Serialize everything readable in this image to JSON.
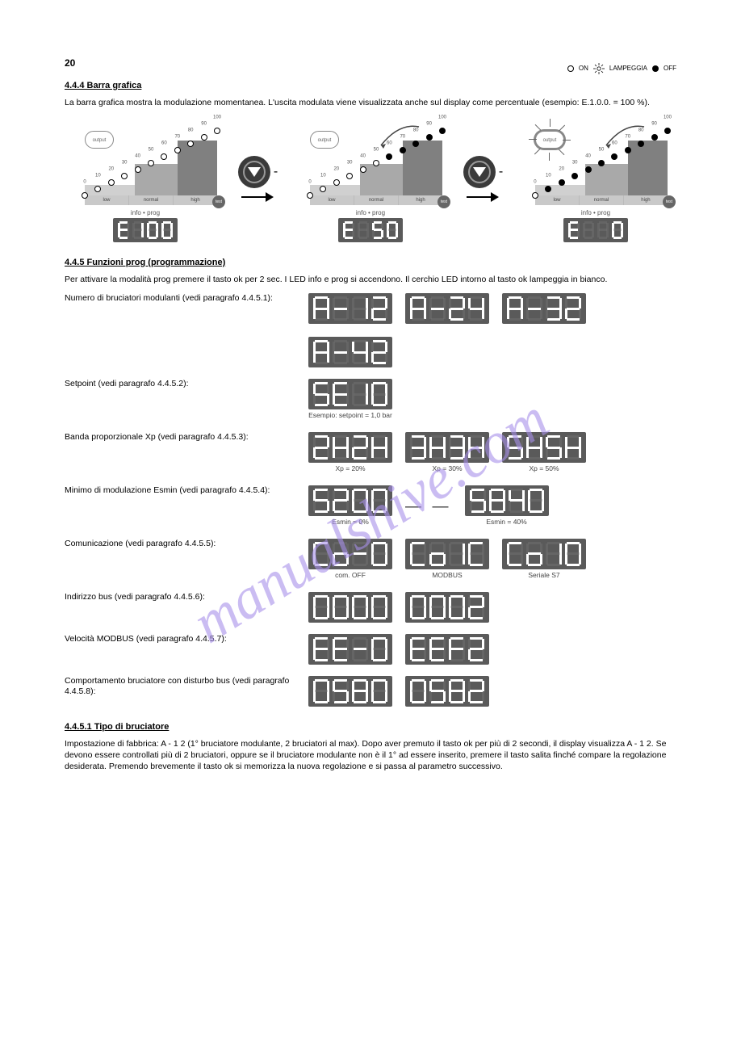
{
  "legend": {
    "on": "ON",
    "lamp": "LAMPEGGIA",
    "off": "OFF"
  },
  "page_number": "20",
  "section1": {
    "title": "4.4.4 Barra grafica",
    "body": "La barra grafica mostra la modulazione momentanea. L'uscita modulata viene visualizzata anche sul display come percentuale (esempio: E.1.0.0. = 100 %).",
    "graphs": {
      "labels": [
        "0",
        "10",
        "20",
        "30",
        "40",
        "50",
        "60",
        "70",
        "80",
        "90",
        "100"
      ],
      "zones": [
        "low",
        "normal",
        "high"
      ],
      "output": "output",
      "info_prog": "info • prog",
      "test": "test",
      "displays": [
        "E100",
        "E 50",
        "E  0"
      ]
    }
  },
  "section2": {
    "title": "4.4.5 Funzioni prog (programmazione)",
    "intro": "Per attivare la modalità prog premere il tasto ok per 2 sec. I LED info e prog si accendono. Il cerchio LED intorno al tasto ok lampeggia in bianco.",
    "params": [
      {
        "label": "Numero di bruciatori modulanti (vedi paragrafo 4.4.5.1):",
        "displays": [
          "A-12",
          "A-24",
          "A-32",
          "A-42"
        ]
      },
      {
        "label": "Setpoint (vedi paragrafo 4.4.5.2):",
        "displays": [
          "SE10"
        ],
        "caps": [
          "Esempio: setpoint = 1,0 bar"
        ]
      },
      {
        "label": "Banda proporzionale Xp (vedi paragrafo 4.4.5.3):",
        "displays": [
          "2H2H",
          "3H3H",
          "5H5H"
        ],
        "caps": [
          "Xp = 20%",
          "Xp = 30%",
          "Xp = 50%"
        ]
      },
      {
        "label": "Minimo di modulazione Esmin (vedi paragrafo 4.4.5.4):",
        "displays": [
          "S200",
          "S840"
        ],
        "joiner": "— —",
        "caps_left": "Esmin = 0%",
        "caps_right": "Esmin = 40%"
      },
      {
        "label": "Comunicazione (vedi paragrafo 4.4.5.5):",
        "displays": [
          "Co-0",
          "Co1C",
          "Co10"
        ],
        "caps": [
          "com. OFF",
          "MODBUS",
          "Seriale S7"
        ]
      },
      {
        "label": "Indirizzo bus (vedi paragrafo 4.4.5.6):",
        "displays": [
          "0000",
          "0002"
        ]
      },
      {
        "label": "Velocità MODBUS (vedi paragrafo 4.4.5.7):",
        "displays": [
          "EE-0",
          "EEF2"
        ]
      },
      {
        "label": "Comportamento bruciatore con disturbo bus (vedi paragrafo 4.4.5.8):",
        "displays": [
          "0580",
          "0582"
        ]
      }
    ]
  },
  "section3": {
    "title": "4.4.5.1 Tipo di bruciatore",
    "body": "Impostazione di fabbrica: A - 1 2 (1° bruciatore modulante, 2 bruciatori al max). Dopo aver premuto il tasto ok per più di 2 secondi, il display visualizza A - 1 2. Se devono essere controllati più di 2 bruciatori, oppure se il bruciatore modulante non è il 1° ad essere inserito, premere il tasto salita finché compare la regolazione desiderata. Premendo brevemente il tasto ok si memorizza la nuova regolazione e si passa al parametro successivo."
  },
  "watermark": "manualshive.com",
  "footer": {
    "left": "",
    "right": ""
  },
  "style": {
    "bg": "#ffffff",
    "seg_bg": "#5a5a5a",
    "seg_on": "#ffffff",
    "seg_off": "#7a7a7a",
    "wm_color": "#a890ea",
    "zones": [
      "#d0d0d0",
      "#a9a9a9",
      "#808080"
    ]
  },
  "segments": {
    "0": [
      "a",
      "b",
      "c",
      "d",
      "e",
      "f"
    ],
    "1": [
      "b",
      "c"
    ],
    "2": [
      "a",
      "b",
      "g",
      "e",
      "d"
    ],
    "3": [
      "a",
      "b",
      "g",
      "c",
      "d"
    ],
    "4": [
      "f",
      "g",
      "b",
      "c"
    ],
    "5": [
      "a",
      "f",
      "g",
      "c",
      "d"
    ],
    "6": [
      "a",
      "f",
      "g",
      "e",
      "c",
      "d"
    ],
    "7": [
      "a",
      "b",
      "c"
    ],
    "8": [
      "a",
      "b",
      "c",
      "d",
      "e",
      "f",
      "g"
    ],
    "9": [
      "a",
      "b",
      "c",
      "d",
      "f",
      "g"
    ],
    "A": [
      "a",
      "b",
      "c",
      "e",
      "f",
      "g"
    ],
    "E": [
      "a",
      "f",
      "g",
      "e",
      "d"
    ],
    "S": [
      "a",
      "f",
      "g",
      "c",
      "d"
    ],
    "H": [
      "f",
      "e",
      "b",
      "c",
      "g"
    ],
    "C": [
      "a",
      "f",
      "e",
      "d"
    ],
    "o": [
      "g",
      "c",
      "d",
      "e"
    ],
    "F": [
      "a",
      "f",
      "g",
      "e"
    ],
    "-": [
      "g"
    ],
    " ": []
  }
}
